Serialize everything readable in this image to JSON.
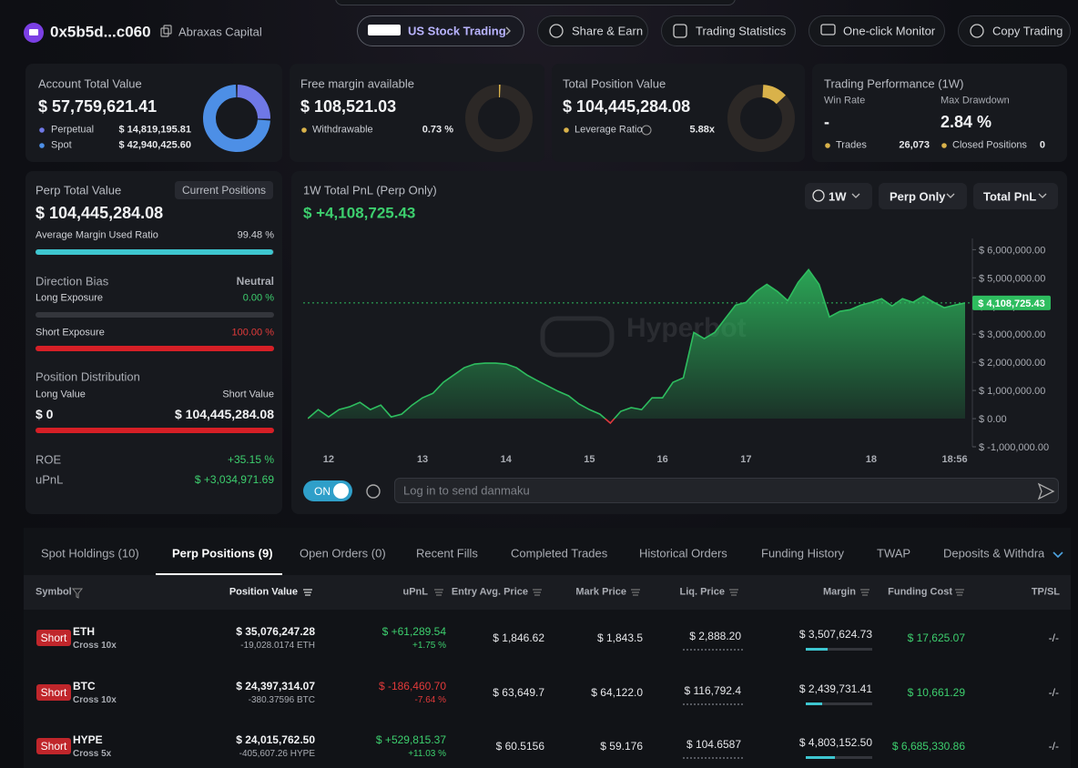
{
  "header": {
    "address": "0x5b5d...c060",
    "name": "Abraxas Capital",
    "buttons": [
      "US Stock Trading",
      "Share & Earn",
      "Trading Statistics",
      "One-click Monitor",
      "Copy Trading"
    ]
  },
  "cards": {
    "account": {
      "title": "Account Total Value",
      "value": "$ 57,759,621.41",
      "items": [
        {
          "name": "Perpetual",
          "amount": {
            "value": 14819195.81,
            "label": "$ 14,819,195.81"
          },
          "color": "#6f78e6"
        },
        {
          "name": "Spot",
          "amount": {
            "value": 42940425.6,
            "label": "$ 42,940,425.60"
          },
          "color": "#4d8fe6"
        }
      ]
    },
    "free_margin": {
      "title": "Free margin available",
      "value": "$ 108,521.03",
      "item": {
        "name": "Withdrawable",
        "amount": {
          "value": 0.73,
          "label": "0.73 %"
        },
        "color": "#d9b24a"
      }
    },
    "position": {
      "title": "Total Position Value",
      "value": "$ 104,445,284.08",
      "item": {
        "name": "Leverage Ratio",
        "value": "5.88x",
        "color": "#d9b24a"
      }
    },
    "performance": {
      "title": "Trading Performance (1W)",
      "win_rate_label": "Win Rate",
      "win_rate": "-",
      "max_drawdown_label": "Max Drawdown",
      "max_drawdown": "2.84 %",
      "trades_label": "Trades",
      "trades": "26,073",
      "closed_label": "Closed Positions",
      "closed": "0"
    }
  },
  "perp_panel": {
    "title": "Perp Total Value",
    "button": "Current Positions",
    "value": "$ 104,445,284.08",
    "margin_label": "Average Margin Used Ratio",
    "margin_ratio": {
      "value": 99.48,
      "label": "99.48 %"
    },
    "bias_label": "Direction Bias",
    "bias": "Neutral",
    "long_label": "Long Exposure",
    "long": {
      "value": 0,
      "label": "0.00 %"
    },
    "short_label": "Short Exposure",
    "short": {
      "value": 100,
      "label": "100.00 %"
    },
    "distribution_label": "Position Distribution",
    "long_value_label": "Long Value",
    "short_value_label": "Short Value",
    "long_value": "$ 0",
    "short_value": "$ 104,445,284.08",
    "roe_label": "ROE",
    "roe": "+35.15 %",
    "upnl_label": "uPnL",
    "upnl": "$ +3,034,971.69"
  },
  "pnl_chart": {
    "type": "area",
    "title": "1W Total PnL (Perp Only)",
    "value": "$ +4,108,725.43",
    "controls": [
      "1W",
      "Perp Only",
      "Total PnL"
    ],
    "watermark": "Hyperbot",
    "color": "#2ebd5f",
    "negative_color": "#e0393e",
    "categories": [
      null,
      null,
      "12",
      null,
      null,
      null,
      null,
      null,
      null,
      null,
      null,
      "13",
      null,
      null,
      null,
      null,
      null,
      null,
      null,
      "14",
      null,
      null,
      null,
      null,
      null,
      null,
      null,
      "15",
      null,
      null,
      null,
      null,
      null,
      null,
      "16",
      null,
      null,
      null,
      null,
      null,
      null,
      null,
      "17",
      null,
      null,
      null,
      null,
      null,
      null,
      null,
      null,
      null,
      null,
      null,
      "18",
      null,
      null,
      null,
      null,
      null,
      null,
      null,
      "18:56",
      null
    ],
    "values": [
      0,
      320000,
      60000,
      320000,
      420000,
      580000,
      320000,
      480000,
      60000,
      160000,
      480000,
      740000,
      900000,
      1290000,
      1550000,
      1810000,
      1940000,
      1970000,
      1970000,
      1940000,
      1810000,
      1550000,
      1350000,
      1160000,
      970000,
      810000,
      520000,
      320000,
      160000,
      -160000,
      260000,
      390000,
      320000,
      740000,
      740000,
      1290000,
      1450000,
      3060000,
      2840000,
      3060000,
      3550000,
      4030000,
      4130000,
      4520000,
      4770000,
      4520000,
      4190000,
      4840000,
      5290000,
      4770000,
      3610000,
      3810000,
      3870000,
      4030000,
      4130000,
      4260000,
      4000000,
      4260000,
      4130000,
      4350000,
      4130000,
      3940000,
      4030000,
      4108725.43
    ],
    "ylim": [
      -1000000,
      6400000
    ],
    "yticks": [
      {
        "value": -1000000,
        "label": "$ -1,000,000.00"
      },
      {
        "value": 0,
        "label": "$ 0.00"
      },
      {
        "value": 1000000,
        "label": "$ 1,000,000.00"
      },
      {
        "value": 2000000,
        "label": "$ 2,000,000.00"
      },
      {
        "value": 3000000,
        "label": "$ 3,000,000.00"
      },
      {
        "value": 4000000,
        "label": "$ 4,000,000.00"
      },
      {
        "value": 5000000,
        "label": "$ 5,000,000.00"
      },
      {
        "value": 6000000,
        "label": "$ 6,000,000.00"
      }
    ],
    "current": {
      "value": 4108725.43,
      "label": "$ 4,108,725.43"
    }
  },
  "danmaku": {
    "toggle": "ON",
    "placeholder": "Log in to send danmaku"
  },
  "tabs": {
    "items": [
      "Spot Holdings (10)",
      "Perp Positions (9)",
      "Open Orders (0)",
      "Recent Fills",
      "Completed Trades",
      "Historical Orders",
      "Funding History",
      "TWAP",
      "Deposits & Withdra"
    ],
    "active": 1
  },
  "table": {
    "columns": [
      "Symbol",
      "Position Value",
      "uPnL",
      "Entry Avg. Price",
      "Mark Price",
      "Liq. Price",
      "Margin",
      "Funding Cost",
      "TP/SL"
    ],
    "rows": [
      {
        "side": "Short",
        "symbol": "ETH",
        "mode": "Cross 10x",
        "position_value": "$ 35,076,247.28",
        "size": "-19,028.0174 ETH",
        "upnl": "$ +61,289.54",
        "upnl_pct": "+1.75 %",
        "entry": "$ 1,846.62",
        "mark": "$ 1,843.5",
        "liq": "$ 2,888.20",
        "margin": "$ 3,507,624.73",
        "funding": "$ 17,625.07",
        "tpsl": "-/-"
      },
      {
        "side": "Short",
        "symbol": "BTC",
        "mode": "Cross 10x",
        "position_value": "$ 24,397,314.07",
        "size": "-380.37596 BTC",
        "upnl": "$ -186,460.70",
        "upnl_pct": "-7.64 %",
        "entry": "$ 63,649.7",
        "mark": "$ 64,122.0",
        "liq": "$ 116,792.4",
        "margin": "$ 2,439,731.41",
        "funding": "$ 10,661.29",
        "tpsl": "-/-"
      },
      {
        "side": "Short",
        "symbol": "HYPE",
        "mode": "Cross 5x",
        "position_value": "$ 24,015,762.50",
        "size": "-405,607.26 HYPE",
        "upnl": "$ +529,815.37",
        "upnl_pct": "+11.03 %",
        "entry": "$ 60.5156",
        "mark": "$ 59.176",
        "liq": "$ 104.6587",
        "margin": "$ 4,803,152.50",
        "funding": "$ 6,685,330.86",
        "tpsl": "-/-"
      }
    ]
  }
}
